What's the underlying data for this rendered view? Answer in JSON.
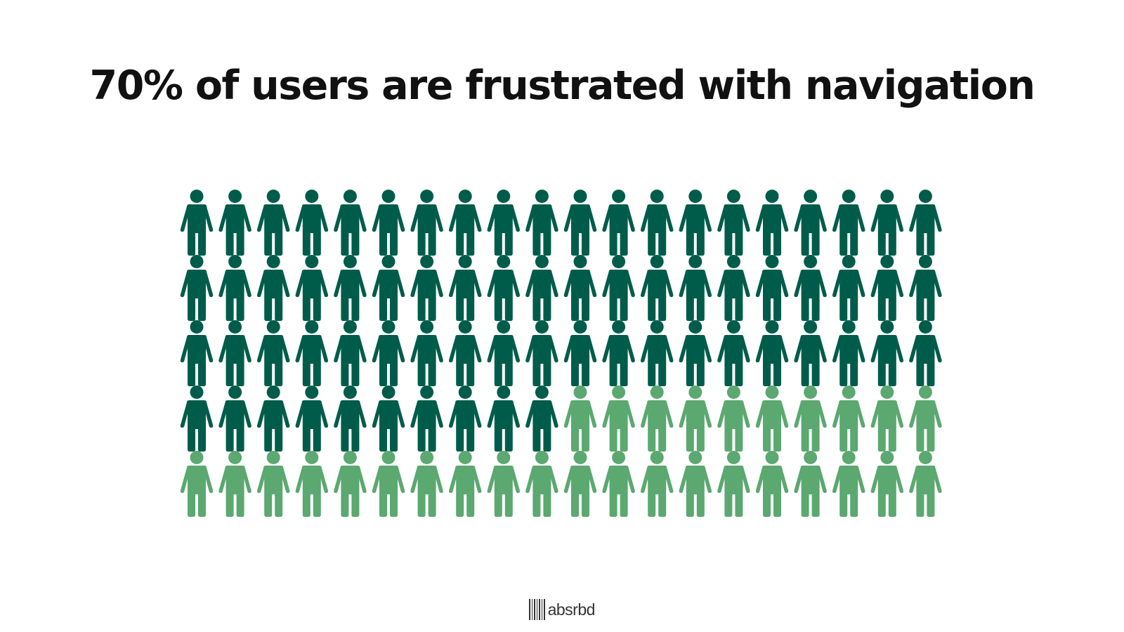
{
  "header": {
    "title": "70% of users are frustrated with navigation"
  },
  "chart_data": {
    "type": "pictogram",
    "title": "70% of users are frustrated with navigation",
    "total_icons": 100,
    "rows": 5,
    "columns": 20,
    "highlighted_count": 70,
    "highlighted_percent": 70,
    "icon": "person-icon",
    "colors": {
      "highlighted": "#005c4a",
      "other": "#5ba870"
    }
  },
  "footer": {
    "brand": "absrbd",
    "brand_icon": "barcode-icon"
  }
}
